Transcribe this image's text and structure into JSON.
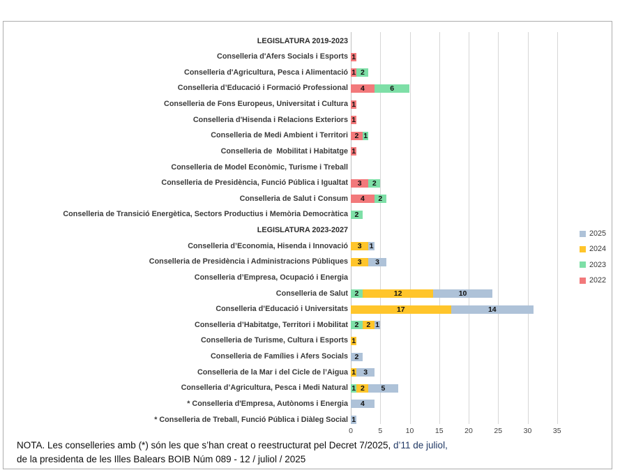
{
  "note": {
    "line1_part1": "NOTA. Les conselleries amb (*) són les que s’han creat o reestructurat pel Decret 7/2025, ",
    "line1_part2": "d’11 de juliol,",
    "line2": "de la presidenta de les Illes Balears BOIB Núm 089 - 12 / juliol / 2025"
  },
  "chart_data": {
    "type": "bar",
    "orientation": "horizontal",
    "stacked": true,
    "title": "",
    "xlabel": "",
    "ylabel": "",
    "xlim": [
      0,
      35
    ],
    "x_ticks": [
      0,
      5,
      10,
      15,
      20,
      25,
      30,
      35
    ],
    "grid": true,
    "legend_position": "right",
    "legend_order": [
      "2025",
      "2024",
      "2023",
      "2022"
    ],
    "colors": {
      "2025": "#AEC2D8",
      "2024": "#FFC52B",
      "2023": "#7EDFA7",
      "2022": "#F2797B"
    },
    "categories": [
      {
        "label": "LEGISLATURA 2019-2023",
        "header": true
      },
      {
        "label": "Conselleria d'Afers Socials i Esports",
        "header": false
      },
      {
        "label": "Conselleria d'Agricultura, Pesca i Alimentació",
        "header": false
      },
      {
        "label": "Conselleria d’Educació i Formació Professional",
        "header": false
      },
      {
        "label": "Conselleria de Fons Europeus, Universitat i Cultura",
        "header": false
      },
      {
        "label": "Conselleria d'Hisenda i Relacions Exteriors",
        "header": false
      },
      {
        "label": "Conselleria de Medi Ambient i Territori",
        "header": false
      },
      {
        "label": "Conselleria de  Mobilitat i Habitatge",
        "header": false
      },
      {
        "label": "Conselleria de Model Econòmic, Turisme i Treball",
        "header": false
      },
      {
        "label": "Conselleria de Presidència, Funció Pública i Igualtat",
        "header": false
      },
      {
        "label": "Conselleria de Salut i Consum",
        "header": false
      },
      {
        "label": "Conselleria de Transició Energètica, Sectors Productius i Memòria Democràtica",
        "header": false
      },
      {
        "label": "LEGISLATURA 2023-2027",
        "header": true
      },
      {
        "label": "Conselleria d’Economia, Hisenda i Innovació",
        "header": false
      },
      {
        "label": "Conselleria de Presidència i Administracions Públiques",
        "header": false
      },
      {
        "label": "Conselleria d’Empresa, Ocupació i Energia",
        "header": false
      },
      {
        "label": "Conselleria de Salut",
        "header": false
      },
      {
        "label": "Conselleria d’Educació i Universitats",
        "header": false
      },
      {
        "label": "Conselleria d’Habitatge, Territori i Mobilitat",
        "header": false
      },
      {
        "label": "Conselleria de Turisme, Cultura i Esports",
        "header": false
      },
      {
        "label": "Conselleria de Famílies i Afers Socials",
        "header": false
      },
      {
        "label": "Conselleria de la Mar i del Cicle de l’Aigua",
        "header": false
      },
      {
        "label": "Conselleria d’Agricultura, Pesca i Medi Natural",
        "header": false
      },
      {
        "label": "* Conselleria d'Empresa, Autònoms i Energia",
        "header": false
      },
      {
        "label": "* Conselleria de Treball, Funció Pública i Diàleg Social",
        "header": false
      }
    ],
    "series": [
      {
        "name": "2022",
        "values": [
          0,
          1,
          1,
          4,
          1,
          1,
          2,
          1,
          0,
          3,
          4,
          0,
          0,
          0,
          0,
          0,
          0,
          0,
          0,
          0,
          0,
          0,
          0,
          0,
          0
        ]
      },
      {
        "name": "2023",
        "values": [
          0,
          0,
          2,
          6,
          0,
          0,
          1,
          0,
          0,
          2,
          2,
          2,
          0,
          0,
          0,
          0,
          2,
          0,
          2,
          0,
          0,
          0,
          1,
          0,
          0
        ]
      },
      {
        "name": "2024",
        "values": [
          0,
          0,
          0,
          0,
          0,
          0,
          0,
          0,
          0,
          0,
          0,
          0,
          0,
          3,
          3,
          0,
          12,
          17,
          2,
          1,
          0,
          1,
          2,
          0,
          0
        ]
      },
      {
        "name": "2025",
        "values": [
          0,
          0,
          0,
          0,
          0,
          0,
          0,
          0,
          0,
          0,
          0,
          0,
          0,
          1,
          3,
          0,
          10,
          14,
          1,
          0,
          2,
          3,
          5,
          4,
          1
        ]
      }
    ]
  }
}
